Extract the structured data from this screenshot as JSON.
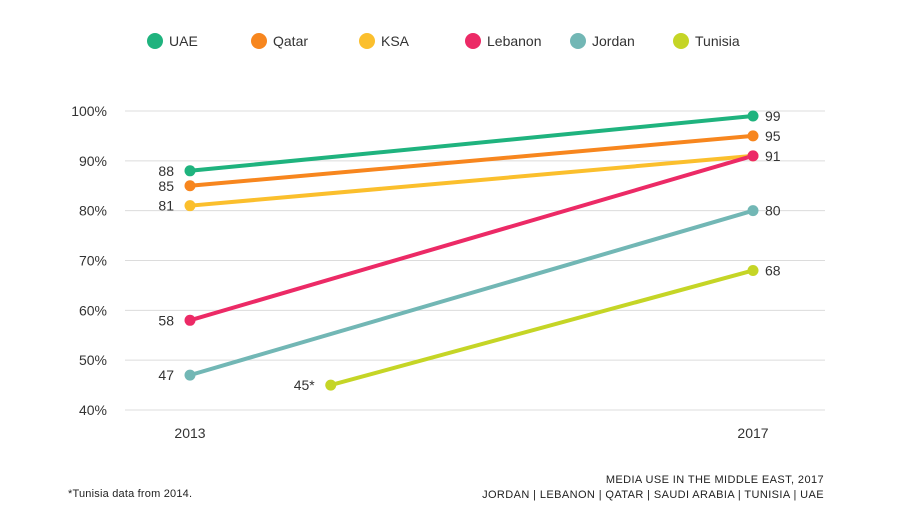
{
  "chart_data": {
    "type": "line",
    "x": [
      "2013",
      "2017"
    ],
    "ylim": [
      40,
      100
    ],
    "yticks": [
      "40%",
      "50%",
      "60%",
      "70%",
      "80%",
      "90%",
      "100%"
    ],
    "grid": true,
    "legend_position": "top",
    "series": [
      {
        "name": "UAE",
        "color": "#1fb37e",
        "points": [
          {
            "x": "2013",
            "y": 88,
            "label": "88"
          },
          {
            "x": "2017",
            "y": 99,
            "label": "99"
          }
        ]
      },
      {
        "name": "Qatar",
        "color": "#f7861e",
        "points": [
          {
            "x": "2013",
            "y": 85,
            "label": "85"
          },
          {
            "x": "2017",
            "y": 95,
            "label": "95"
          }
        ]
      },
      {
        "name": "KSA",
        "color": "#fbbf2d",
        "points": [
          {
            "x": "2013",
            "y": 81,
            "label": "81"
          },
          {
            "x": "2017",
            "y": 91,
            "label": ""
          }
        ]
      },
      {
        "name": "Lebanon",
        "color": "#ec2a66",
        "points": [
          {
            "x": "2013",
            "y": 58,
            "label": "58"
          },
          {
            "x": "2017",
            "y": 91,
            "label": "91"
          }
        ]
      },
      {
        "name": "Jordan",
        "color": "#72b7b5",
        "points": [
          {
            "x": "2013",
            "y": 47,
            "label": "47"
          },
          {
            "x": "2017",
            "y": 80,
            "label": "80"
          }
        ]
      },
      {
        "name": "Tunisia",
        "color": "#c5d526",
        "points": [
          {
            "x": "2014",
            "y": 45,
            "label": "45*"
          },
          {
            "x": "2017",
            "y": 68,
            "label": "68"
          }
        ]
      }
    ]
  },
  "footnote": "*Tunisia data from 2014.",
  "source": {
    "title": "MEDIA USE IN THE MIDDLE EAST, 2017",
    "subtitle": "JORDAN | LEBANON | QATAR | SAUDI ARABIA | TUNISIA | UAE"
  }
}
